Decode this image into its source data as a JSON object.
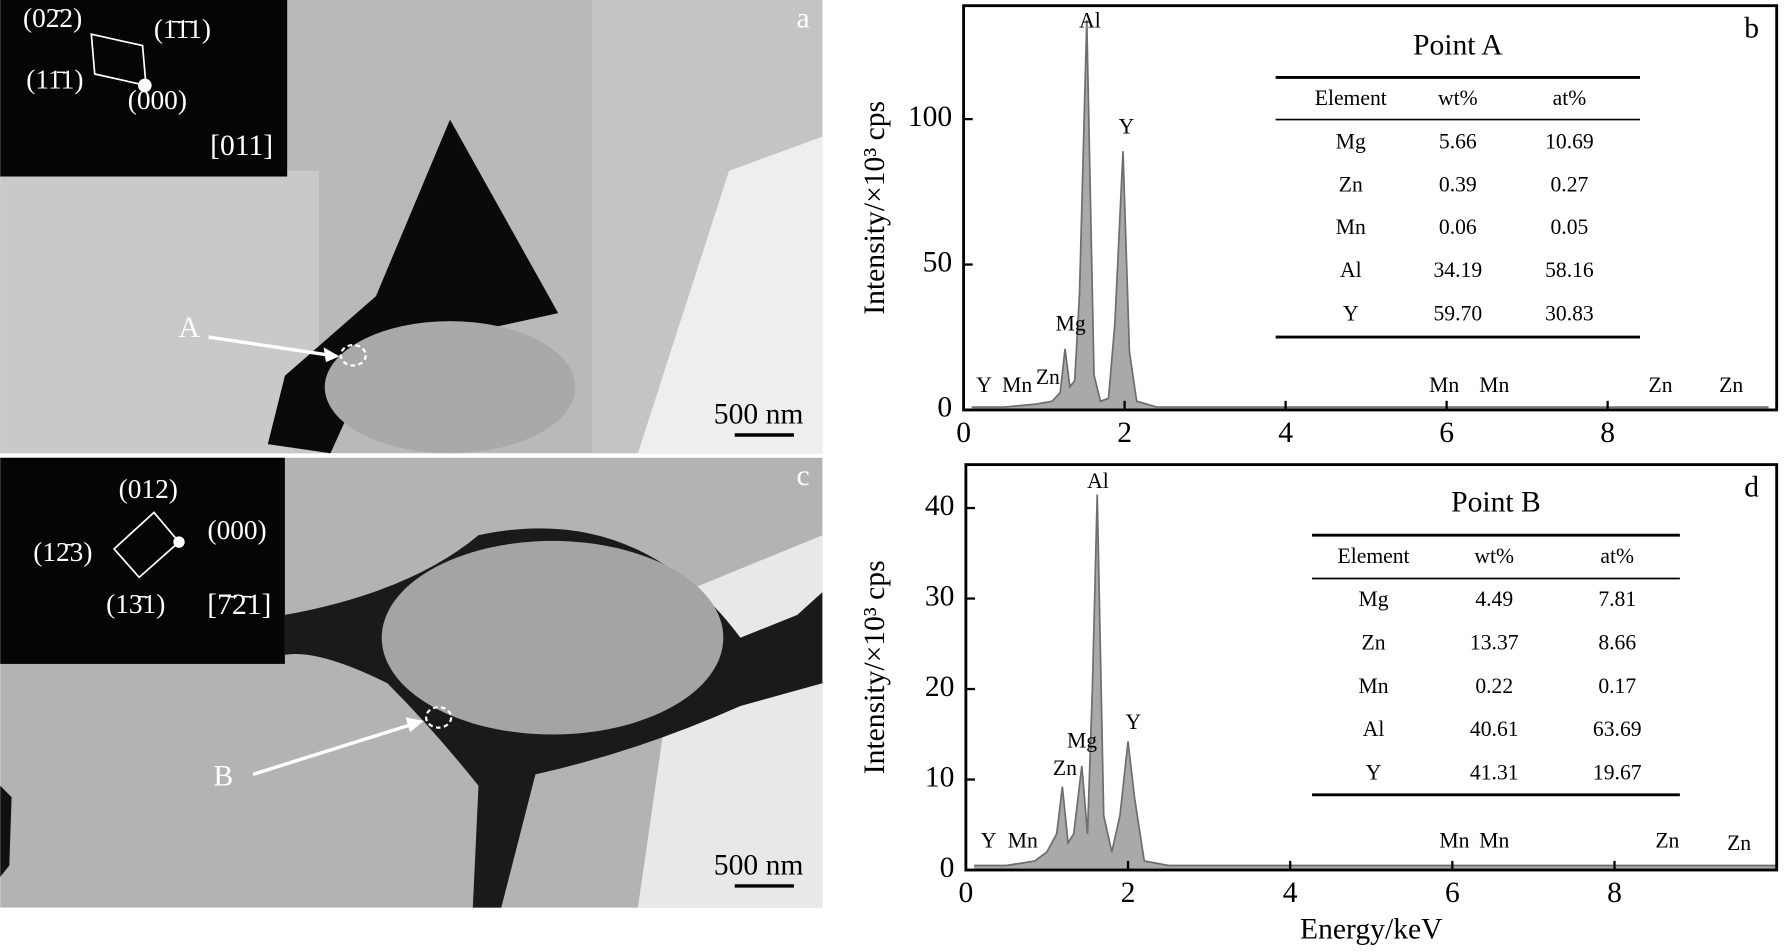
{
  "micrographs": {
    "a": {
      "panel": "a",
      "point": "A",
      "scale_bar": "500 nm",
      "sad_labels": [
        "(02̄2)",
        "(1̄1̄1)",
        "(11̄1)",
        "(000)",
        "[011]"
      ]
    },
    "c": {
      "panel": "c",
      "point": "B",
      "scale_bar": "500 nm",
      "sad_labels": [
        "(012)",
        "(12̄3)",
        "(000)",
        "(13̄1)",
        "[7̄2̄1]"
      ]
    }
  },
  "chart_data": [
    {
      "type": "line",
      "panel": "b",
      "y_label": "Intensity/×10³ cps",
      "color": "#8c8c8c",
      "x": [
        0.1,
        0.5,
        0.9,
        1.1,
        1.2,
        1.26,
        1.32,
        1.38,
        1.44,
        1.53,
        1.62,
        1.7,
        1.8,
        1.88,
        1.98,
        2.06,
        2.15,
        2.4,
        4,
        6,
        8,
        10
      ],
      "values": [
        1,
        1,
        2,
        3,
        6,
        21,
        8,
        10,
        40,
        134,
        12,
        3,
        4,
        30,
        89,
        20,
        3,
        1,
        1,
        1,
        1,
        1
      ],
      "xlim": [
        0,
        10.1
      ],
      "ylim": [
        0,
        139
      ],
      "xticks": [
        0,
        2,
        4,
        6,
        8
      ],
      "yticks": [
        0,
        50,
        100
      ],
      "peak_labels": [
        "Y",
        "Mn",
        "Zn",
        "Mg",
        "Al",
        "Y",
        "Mn",
        "Mn",
        "Zn",
        "Zn"
      ],
      "table": {
        "title": "Point A",
        "columns": [
          "Element",
          "wt%",
          "at%"
        ],
        "rows": [
          [
            "Mg",
            "5.66",
            "10.69"
          ],
          [
            "Zn",
            "0.39",
            "0.27"
          ],
          [
            "Mn",
            "0.06",
            "0.05"
          ],
          [
            "Al",
            "34.19",
            "58.16"
          ],
          [
            "Y",
            "59.70",
            "30.83"
          ]
        ]
      }
    },
    {
      "type": "line",
      "panel": "d",
      "y_label": "Intensity/×10³ cps",
      "x_label": "Energy/keV",
      "color": "#8c8c8c",
      "x": [
        0.1,
        0.5,
        0.85,
        1.0,
        1.12,
        1.19,
        1.26,
        1.33,
        1.43,
        1.5,
        1.56,
        1.62,
        1.7,
        1.8,
        1.9,
        2.0,
        2.08,
        2.2,
        2.5,
        4,
        6,
        8,
        10
      ],
      "values": [
        0.5,
        0.5,
        1,
        2,
        4,
        9.2,
        3,
        4,
        11.5,
        4,
        20,
        41.5,
        6,
        2,
        6,
        14.2,
        8,
        1,
        0.5,
        0.5,
        0.5,
        0.5,
        0.5
      ],
      "xlim": [
        0,
        10
      ],
      "ylim": [
        0,
        44.8
      ],
      "xticks": [
        0,
        2,
        4,
        6,
        8
      ],
      "yticks": [
        0,
        10,
        20,
        30,
        40
      ],
      "peak_labels": [
        "Y",
        "Mn",
        "Zn",
        "Mg",
        "Al",
        "Y",
        "Mn",
        "Mn",
        "Zn",
        "Zn"
      ],
      "table": {
        "title": "Point B",
        "columns": [
          "Element",
          "wt%",
          "at%"
        ],
        "rows": [
          [
            "Mg",
            "4.49",
            "7.81"
          ],
          [
            "Zn",
            "13.37",
            "8.66"
          ],
          [
            "Mn",
            "0.22",
            "0.17"
          ],
          [
            "Al",
            "40.61",
            "63.69"
          ],
          [
            "Y",
            "41.31",
            "19.67"
          ]
        ]
      }
    }
  ]
}
